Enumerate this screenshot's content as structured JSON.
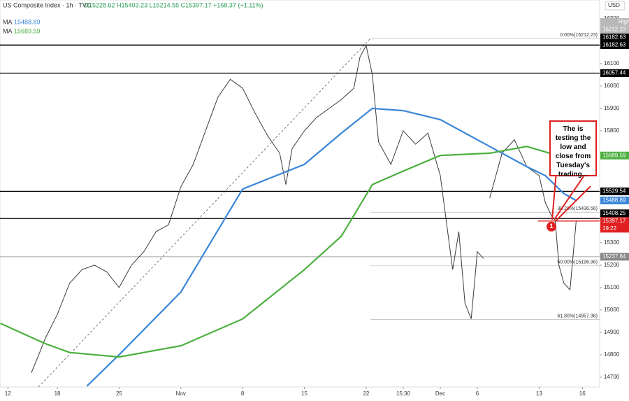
{
  "chart_data": {
    "type": "line",
    "title": "US Composite Index · 1h · TVC",
    "ohlc": "O15228.62 H15403.23 L15214.55 C15397.17 +168.37 (+1.11%)",
    "currency": "USD",
    "xlim": [
      -0.64,
      47.9
    ],
    "ylim": [
      14656,
      16384
    ],
    "xticks": [
      {
        "value": 0,
        "label": "12"
      },
      {
        "value": 4,
        "label": "18"
      },
      {
        "value": 9,
        "label": "25"
      },
      {
        "value": 14,
        "label": "Nov"
      },
      {
        "value": 19,
        "label": "8"
      },
      {
        "value": 24,
        "label": "15"
      },
      {
        "value": 29,
        "label": "22"
      },
      {
        "value": 32,
        "label": "15:30"
      },
      {
        "value": 35,
        "label": "Dec"
      },
      {
        "value": 38,
        "label": "6"
      },
      {
        "value": 43,
        "label": "13"
      },
      {
        "value": 46.5,
        "label": "16"
      }
    ],
    "yticks": [
      14700,
      14800,
      14900,
      15000,
      15100,
      15200,
      15300,
      15800,
      15900,
      16000,
      16100,
      16300
    ],
    "series": [
      {
        "color": "#3b3b3b",
        "x": [
          1.9,
          2.5,
          3,
          4,
          5,
          6,
          7,
          8,
          9,
          10,
          11,
          12,
          13,
          14,
          15,
          16,
          17,
          18,
          19,
          20,
          21,
          22,
          22.5,
          23,
          24,
          25,
          26,
          27,
          28,
          28.5,
          29,
          29.5,
          30,
          31,
          32,
          33,
          34,
          35,
          36,
          36.5,
          37,
          37.5,
          38,
          38.5,
          38.7,
          39,
          40,
          41,
          42,
          43,
          43.5,
          44,
          44.3,
          44.6,
          45,
          45.5,
          46
        ],
        "values": [
          14720,
          14800,
          14870,
          14980,
          15120,
          15180,
          15200,
          15170,
          15100,
          15200,
          15260,
          15350,
          15380,
          15550,
          15650,
          15800,
          15950,
          16030,
          15990,
          15880,
          15780,
          15700,
          15560,
          15720,
          15800,
          15860,
          15900,
          15940,
          15990,
          16130,
          16180,
          16050,
          15750,
          15650,
          15800,
          15740,
          15790,
          15600,
          15180,
          15350,
          15030,
          14960,
          15260,
          15230,
          null,
          15500,
          15700,
          15760,
          15640,
          15600,
          15480,
          15420,
          15400,
          15200,
          15120,
          15090,
          15397.17
        ]
      },
      {
        "name": "MA",
        "color": "#3a86d8",
        "x": [
          6.4,
          9,
          14,
          19,
          24,
          27,
          29.5,
          32,
          35,
          39,
          42,
          43.5,
          45,
          46
        ],
        "values": [
          14660,
          14800,
          15080,
          15540,
          15650,
          15790,
          15900,
          15890,
          15850,
          15730,
          15640,
          15600,
          15520,
          15488.89
        ]
      },
      {
        "name": "MA",
        "color": "#4caf3f",
        "x": [
          -0.6,
          3,
          5,
          9,
          14,
          19,
          24,
          27,
          29.5,
          32,
          35,
          39,
          42,
          44.5
        ],
        "values": [
          14940,
          14850,
          14810,
          14790,
          14840,
          14960,
          15180,
          15330,
          15560,
          15620,
          15690,
          15700,
          15730,
          15689.59
        ]
      }
    ],
    "levels": [
      {
        "value": 16182.63,
        "color": "#000000"
      },
      {
        "value": 16182.63,
        "color": "#000000"
      },
      {
        "value": 16057.44,
        "color": "#000000"
      },
      {
        "value": 15529.54,
        "color": "#000000"
      },
      {
        "value": 15408.25,
        "color": "#000000"
      },
      {
        "value": 15397.17,
        "color": "#e02020",
        "countdown": "19:22"
      },
      {
        "value": 15237.64,
        "color": "#888888"
      }
    ],
    "high": {
      "label": "High",
      "value": 16212.23
    },
    "fib": [
      {
        "value": 16212.23,
        "label": "0.00%(16212.23)"
      },
      {
        "value": 15436.56,
        "label": "38.20%(15436.56)"
      },
      {
        "value": 15196.96,
        "label": "50.00%(15196.96)"
      },
      {
        "value": 14957.36,
        "label": "61.80%(14957.36)"
      }
    ],
    "annotation": {
      "text": "The is testing the low and close from Tuesday's trading...",
      "marker": "1"
    }
  }
}
